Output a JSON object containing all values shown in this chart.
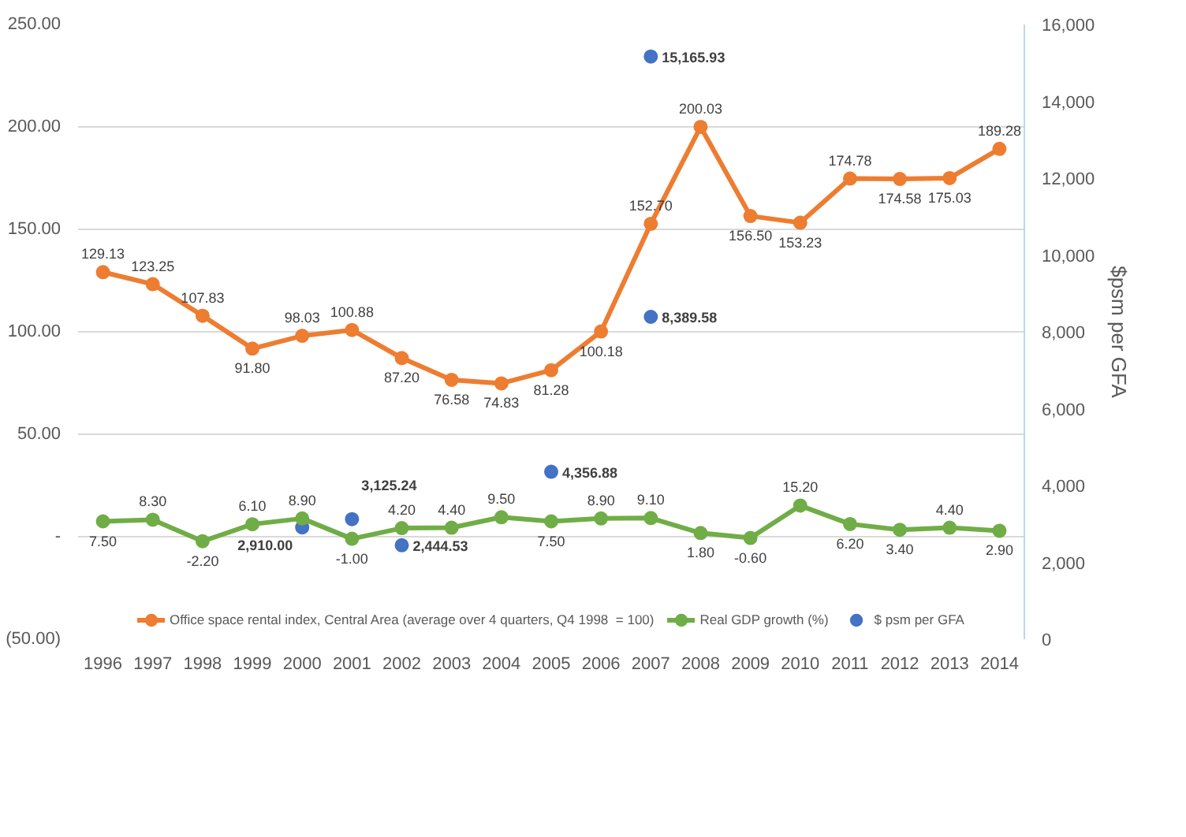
{
  "chart_data": {
    "type": "line",
    "categories": [
      "1996",
      "1997",
      "1998",
      "1999",
      "2000",
      "2001",
      "2002",
      "2003",
      "2004",
      "2005",
      "2006",
      "2007",
      "2008",
      "2009",
      "2010",
      "2011",
      "2012",
      "2013",
      "2014"
    ],
    "y2label": "$psm per GFA",
    "ylim": [
      -50,
      250
    ],
    "yticks": [
      {
        "value": -50,
        "label": "(50.00)"
      },
      {
        "value": 0,
        "label": "-"
      },
      {
        "value": 50,
        "label": "50.00"
      },
      {
        "value": 100,
        "label": "100.00"
      },
      {
        "value": 150,
        "label": "150.00"
      },
      {
        "value": 200,
        "label": "200.00"
      },
      {
        "value": 250,
        "label": "250.00"
      }
    ],
    "y2lim": [
      0,
      16000
    ],
    "y2ticks": [
      0,
      {
        "value": 2000,
        "label": "2,000"
      },
      {
        "value": 4000,
        "label": "4,000"
      },
      {
        "value": 6000,
        "label": "6,000"
      },
      {
        "value": 8000,
        "label": "8,000"
      },
      {
        "value": 10000,
        "label": "10,000"
      },
      {
        "value": 12000,
        "label": "12,000"
      },
      {
        "value": 14000,
        "label": "14,000"
      },
      {
        "value": 16000,
        "label": "16,000"
      }
    ],
    "grid": "y",
    "legend": "bottom",
    "marker": "circle",
    "line_style": "solid",
    "series": [
      {
        "name": "Office space rental index, Central Area (average over 4 quarters, Q4 1998  = 100)",
        "color": "#ed7d31",
        "values": [
          129.13,
          123.25,
          107.83,
          91.8,
          98.03,
          100.88,
          87.2,
          76.58,
          74.83,
          81.28,
          100.18,
          152.7,
          200.03,
          156.5,
          153.23,
          174.78,
          174.58,
          175.03,
          189.28
        ],
        "value_labels": [
          "129.13",
          "123.25",
          "107.83",
          "91.80",
          "98.03",
          "100.88",
          "87.20",
          "76.58",
          "74.83",
          "81.28",
          "100.18",
          "152.70",
          "200.03",
          "156.50",
          "153.23",
          "174.78",
          "174.58",
          "175.03",
          "189.28"
        ]
      },
      {
        "name": "Real GDP growth (%)",
        "color": "#70ad47",
        "values": [
          7.5,
          8.3,
          -2.2,
          6.1,
          8.9,
          -1.0,
          4.2,
          4.4,
          9.5,
          7.5,
          8.9,
          9.1,
          1.8,
          -0.6,
          15.2,
          6.2,
          3.4,
          4.4,
          2.9
        ],
        "value_labels": [
          "7.50",
          "8.30",
          "-2.20",
          "6.10",
          "8.90",
          "-1.00",
          "4.20",
          "4.40",
          "9.50",
          "7.50",
          "8.90",
          "9.10",
          "1.80",
          "-0.60",
          "15.20",
          "6.20",
          "3.40",
          "4.40",
          "2.90"
        ]
      },
      {
        "name": "$ psm per GFA",
        "type": "scatter",
        "axis": "y2",
        "color": "#4472c4",
        "values": [
          null,
          null,
          null,
          null,
          2910.0,
          3125.24,
          2444.53,
          null,
          null,
          4356.88,
          null,
          15165.93,
          null,
          null,
          null,
          null,
          null,
          null,
          null
        ],
        "value_labels": [
          null,
          null,
          null,
          null,
          "2,910.00",
          "3,125.24",
          "2,444.53",
          null,
          null,
          "4,356.88",
          null,
          "15,165.93",
          null,
          null,
          null,
          null,
          null,
          null,
          null
        ]
      },
      {
        "type": "scatter",
        "axis": "y2",
        "color": "#4472c4",
        "values": [
          null,
          null,
          null,
          null,
          null,
          null,
          null,
          null,
          null,
          null,
          null,
          8389.58,
          null,
          null,
          null,
          null,
          null,
          null,
          null
        ],
        "value_labels": [
          null,
          null,
          null,
          null,
          null,
          null,
          null,
          null,
          null,
          null,
          null,
          "8,389.58",
          null,
          null,
          null,
          null,
          null,
          null,
          null
        ]
      }
    ]
  }
}
